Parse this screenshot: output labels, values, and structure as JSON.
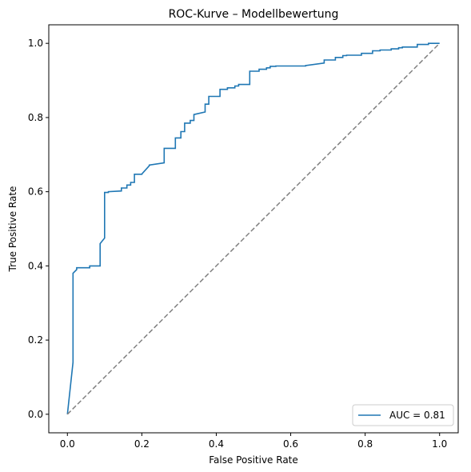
{
  "chart_data": {
    "type": "line",
    "title": "ROC-Kurve – Modellbewertung",
    "xlabel": "False Positive Rate",
    "ylabel": "True Positive Rate",
    "xlim": [
      -0.05,
      1.05
    ],
    "ylim": [
      -0.05,
      1.05
    ],
    "x_ticks": [
      "0.0",
      "0.2",
      "0.4",
      "0.6",
      "0.8",
      "1.0"
    ],
    "y_ticks": [
      "0.0",
      "0.2",
      "0.4",
      "0.6",
      "0.8",
      "1.0"
    ],
    "grid": false,
    "legend_position": "lower-right",
    "series": [
      {
        "name": "AUC = 0.81",
        "color": "#1f77b4",
        "style": "solid",
        "x": [
          0.0,
          0.015,
          0.015,
          0.025,
          0.025,
          0.06,
          0.06,
          0.088,
          0.088,
          0.1,
          0.1,
          0.11,
          0.11,
          0.145,
          0.145,
          0.16,
          0.16,
          0.17,
          0.17,
          0.18,
          0.18,
          0.2,
          0.2,
          0.22,
          0.22,
          0.26,
          0.26,
          0.29,
          0.29,
          0.305,
          0.305,
          0.315,
          0.315,
          0.33,
          0.33,
          0.34,
          0.34,
          0.37,
          0.37,
          0.38,
          0.38,
          0.41,
          0.41,
          0.43,
          0.43,
          0.45,
          0.45,
          0.46,
          0.46,
          0.49,
          0.49,
          0.515,
          0.515,
          0.535,
          0.535,
          0.545,
          0.545,
          0.56,
          0.56,
          0.64,
          0.64,
          0.69,
          0.69,
          0.72,
          0.72,
          0.74,
          0.74,
          0.75,
          0.75,
          0.79,
          0.79,
          0.82,
          0.82,
          0.84,
          0.84,
          0.87,
          0.87,
          0.89,
          0.89,
          0.9,
          0.9,
          0.94,
          0.94,
          0.97,
          0.97,
          1.0
        ],
        "y": [
          0.0,
          0.14,
          0.38,
          0.39,
          0.395,
          0.395,
          0.4,
          0.4,
          0.46,
          0.475,
          0.598,
          0.598,
          0.6,
          0.602,
          0.61,
          0.61,
          0.618,
          0.618,
          0.625,
          0.625,
          0.647,
          0.647,
          0.648,
          0.67,
          0.672,
          0.678,
          0.717,
          0.717,
          0.745,
          0.745,
          0.762,
          0.762,
          0.785,
          0.785,
          0.792,
          0.792,
          0.808,
          0.815,
          0.836,
          0.836,
          0.857,
          0.857,
          0.876,
          0.876,
          0.88,
          0.88,
          0.885,
          0.885,
          0.889,
          0.889,
          0.925,
          0.925,
          0.93,
          0.93,
          0.934,
          0.934,
          0.938,
          0.938,
          0.939,
          0.939,
          0.94,
          0.947,
          0.955,
          0.955,
          0.962,
          0.962,
          0.967,
          0.967,
          0.968,
          0.968,
          0.973,
          0.973,
          0.98,
          0.98,
          0.982,
          0.982,
          0.985,
          0.985,
          0.988,
          0.988,
          0.99,
          0.99,
          0.997,
          0.997,
          1.0,
          1.0
        ]
      },
      {
        "color": "#808080",
        "style": "dashed",
        "x": [
          0.0,
          1.0
        ],
        "y": [
          0.0,
          1.0
        ]
      }
    ]
  }
}
